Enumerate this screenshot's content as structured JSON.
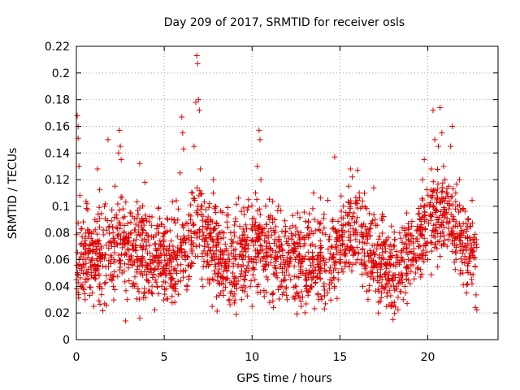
{
  "chart_data": {
    "type": "scatter",
    "title": "Day 209 of 2017, SRMTID for receiver osls",
    "xlabel": "GPS time / hours",
    "ylabel": "SRMTID / TECUs",
    "xlim": [
      0,
      24
    ],
    "ylim": [
      0,
      0.22
    ],
    "xticks": [
      0,
      5,
      10,
      15,
      20
    ],
    "xtick_labels": [
      "0",
      "5",
      "10",
      "15",
      "20"
    ],
    "yticks": [
      0,
      0.02,
      0.04,
      0.06,
      0.08,
      0.1,
      0.12,
      0.14,
      0.16,
      0.18,
      0.2,
      0.22
    ],
    "ytick_labels": [
      "0",
      "0.02",
      "0.04",
      "0.06",
      "0.08",
      "0.1",
      "0.12",
      "0.14",
      "0.16",
      "0.18",
      "0.2",
      "0.22"
    ],
    "grid": true,
    "marker": "+",
    "marker_color": "#e00000",
    "series": [
      {
        "name": "SRMTID",
        "points": [
          [
            0.05,
            0.168
          ],
          [
            0.1,
            0.16
          ],
          [
            0.1,
            0.151
          ],
          [
            0.15,
            0.13
          ],
          [
            0.2,
            0.108
          ],
          [
            0.25,
            0.062
          ],
          [
            0.3,
            0.055
          ],
          [
            0.4,
            0.07
          ],
          [
            0.5,
            0.03
          ],
          [
            0.6,
            0.045
          ],
          [
            0.7,
            0.08
          ],
          [
            0.8,
            0.058
          ],
          [
            0.9,
            0.035
          ],
          [
            1.0,
            0.025
          ],
          [
            1.1,
            0.065
          ],
          [
            1.2,
            0.128
          ],
          [
            1.3,
            0.04
          ],
          [
            1.4,
            0.07
          ],
          [
            1.5,
            0.055
          ],
          [
            1.6,
            0.1
          ],
          [
            1.7,
            0.048
          ],
          [
            1.8,
            0.15
          ],
          [
            1.9,
            0.085
          ],
          [
            2.0,
            0.062
          ],
          [
            2.1,
            0.04
          ],
          [
            2.2,
            0.115
          ],
          [
            2.3,
            0.072
          ],
          [
            2.4,
            0.14
          ],
          [
            2.45,
            0.157
          ],
          [
            2.5,
            0.145
          ],
          [
            2.55,
            0.135
          ],
          [
            2.6,
            0.05
          ],
          [
            2.7,
            0.08
          ],
          [
            2.8,
            0.014
          ],
          [
            2.9,
            0.03
          ],
          [
            3.0,
            0.06
          ],
          [
            3.1,
            0.095
          ],
          [
            3.2,
            0.068
          ],
          [
            3.3,
            0.04
          ],
          [
            3.4,
            0.075
          ],
          [
            3.5,
            0.055
          ],
          [
            3.6,
            0.132
          ],
          [
            3.7,
            0.088
          ],
          [
            3.8,
            0.07
          ],
          [
            3.9,
            0.118
          ],
          [
            4.0,
            0.045
          ],
          [
            4.1,
            0.078
          ],
          [
            4.2,
            0.06
          ],
          [
            4.3,
            0.092
          ],
          [
            4.4,
            0.052
          ],
          [
            4.5,
            0.072
          ],
          [
            4.6,
            0.04
          ],
          [
            4.7,
            0.085
          ],
          [
            4.8,
            0.065
          ],
          [
            4.9,
            0.05
          ],
          [
            5.0,
            0.07
          ],
          [
            5.1,
            0.038
          ],
          [
            5.2,
            0.09
          ],
          [
            5.3,
            0.058
          ],
          [
            5.4,
            0.045
          ],
          [
            5.5,
            0.07
          ],
          [
            5.6,
            0.028
          ],
          [
            5.7,
            0.06
          ],
          [
            5.8,
            0.098
          ],
          [
            5.9,
            0.125
          ],
          [
            6.0,
            0.167
          ],
          [
            6.05,
            0.155
          ],
          [
            6.1,
            0.143
          ],
          [
            6.2,
            0.06
          ],
          [
            6.3,
            0.04
          ],
          [
            6.4,
            0.075
          ],
          [
            6.5,
            0.09
          ],
          [
            6.6,
            0.11
          ],
          [
            6.7,
            0.145
          ],
          [
            6.8,
            0.178
          ],
          [
            6.85,
            0.213
          ],
          [
            6.9,
            0.207
          ],
          [
            6.95,
            0.18
          ],
          [
            7.0,
            0.172
          ],
          [
            7.05,
            0.128
          ],
          [
            7.1,
            0.1
          ],
          [
            7.2,
            0.085
          ],
          [
            7.3,
            0.07
          ],
          [
            7.4,
            0.055
          ],
          [
            7.5,
            0.092
          ],
          [
            7.6,
            0.045
          ],
          [
            7.7,
            0.062
          ],
          [
            7.8,
            0.12
          ],
          [
            7.9,
            0.1
          ],
          [
            8.0,
            0.075
          ],
          [
            8.1,
            0.05
          ],
          [
            8.2,
            0.035
          ],
          [
            8.3,
            0.065
          ],
          [
            8.4,
            0.08
          ],
          [
            8.5,
            0.045
          ],
          [
            8.6,
            0.06
          ],
          [
            8.7,
            0.03
          ],
          [
            8.8,
            0.07
          ],
          [
            8.9,
            0.05
          ],
          [
            9.0,
            0.04
          ],
          [
            9.1,
            0.019
          ],
          [
            9.2,
            0.055
          ],
          [
            9.3,
            0.085
          ],
          [
            9.4,
            0.03
          ],
          [
            9.5,
            0.062
          ],
          [
            9.6,
            0.048
          ],
          [
            9.7,
            0.072
          ],
          [
            9.8,
            0.105
          ],
          [
            9.9,
            0.04
          ],
          [
            10.0,
            0.025
          ],
          [
            10.1,
            0.06
          ],
          [
            10.2,
            0.11
          ],
          [
            10.3,
            0.13
          ],
          [
            10.4,
            0.157
          ],
          [
            10.45,
            0.15
          ],
          [
            10.5,
            0.12
          ],
          [
            10.6,
            0.08
          ],
          [
            10.7,
            0.055
          ],
          [
            10.8,
            0.07
          ],
          [
            10.9,
            0.045
          ],
          [
            11.0,
            0.09
          ],
          [
            11.1,
            0.062
          ],
          [
            11.2,
            0.035
          ],
          [
            11.3,
            0.075
          ],
          [
            11.4,
            0.05
          ],
          [
            11.5,
            0.1
          ],
          [
            11.6,
            0.068
          ],
          [
            11.7,
            0.04
          ],
          [
            11.8,
            0.058
          ],
          [
            11.9,
            0.085
          ],
          [
            12.0,
            0.03
          ],
          [
            12.1,
            0.065
          ],
          [
            12.2,
            0.045
          ],
          [
            12.3,
            0.078
          ],
          [
            12.4,
            0.055
          ],
          [
            12.5,
            0.04
          ],
          [
            12.6,
            0.095
          ],
          [
            12.7,
            0.06
          ],
          [
            12.8,
            0.025
          ],
          [
            12.9,
            0.05
          ],
          [
            13.0,
            0.072
          ],
          [
            13.1,
            0.038
          ],
          [
            13.2,
            0.088
          ],
          [
            13.3,
            0.06
          ],
          [
            13.4,
            0.045
          ],
          [
            13.5,
            0.11
          ],
          [
            13.6,
            0.07
          ],
          [
            13.7,
            0.048
          ],
          [
            13.8,
            0.03
          ],
          [
            13.9,
            0.062
          ],
          [
            14.0,
            0.08
          ],
          [
            14.1,
            0.042
          ],
          [
            14.2,
            0.058
          ],
          [
            14.3,
            0.035
          ],
          [
            14.4,
            0.075
          ],
          [
            14.5,
            0.05
          ],
          [
            14.6,
            0.09
          ],
          [
            14.7,
            0.137
          ],
          [
            14.8,
            0.068
          ],
          [
            14.9,
            0.045
          ],
          [
            15.0,
            0.06
          ],
          [
            15.1,
            0.082
          ],
          [
            15.2,
            0.1
          ],
          [
            15.3,
            0.055
          ],
          [
            15.4,
            0.07
          ],
          [
            15.5,
            0.115
          ],
          [
            15.6,
            0.128
          ],
          [
            15.7,
            0.122
          ],
          [
            15.8,
            0.095
          ],
          [
            15.9,
            0.075
          ],
          [
            16.0,
            0.06
          ],
          [
            16.1,
            0.11
          ],
          [
            16.2,
            0.085
          ],
          [
            16.3,
            0.04
          ],
          [
            16.4,
            0.065
          ],
          [
            16.5,
            0.05
          ],
          [
            16.6,
            0.03
          ],
          [
            16.7,
            0.078
          ],
          [
            16.8,
            0.058
          ],
          [
            16.9,
            0.045
          ],
          [
            17.0,
            0.09
          ],
          [
            17.1,
            0.068
          ],
          [
            17.2,
            0.028
          ],
          [
            17.3,
            0.055
          ],
          [
            17.4,
            0.04
          ],
          [
            17.5,
            0.072
          ],
          [
            17.6,
            0.05
          ],
          [
            17.7,
            0.035
          ],
          [
            17.8,
            0.06
          ],
          [
            17.9,
            0.025
          ],
          [
            18.0,
            0.045
          ],
          [
            18.1,
            0.075
          ],
          [
            18.2,
            0.038
          ],
          [
            18.3,
            0.058
          ],
          [
            18.4,
            0.08
          ],
          [
            18.5,
            0.05
          ],
          [
            18.6,
            0.068
          ],
          [
            18.7,
            0.04
          ],
          [
            18.8,
            0.095
          ],
          [
            18.9,
            0.06
          ],
          [
            19.0,
            0.042
          ],
          [
            19.1,
            0.078
          ],
          [
            19.2,
            0.065
          ],
          [
            19.3,
            0.05
          ],
          [
            19.4,
            0.085
          ],
          [
            19.5,
            0.07
          ],
          [
            19.6,
            0.1
          ],
          [
            19.7,
            0.12
          ],
          [
            19.8,
            0.135
          ],
          [
            19.9,
            0.09
          ],
          [
            20.0,
            0.06
          ],
          [
            20.1,
            0.1
          ],
          [
            20.2,
            0.128
          ],
          [
            20.3,
            0.172
          ],
          [
            20.4,
            0.15
          ],
          [
            20.5,
            0.11
          ],
          [
            20.6,
            0.145
          ],
          [
            20.7,
            0.174
          ],
          [
            20.8,
            0.155
          ],
          [
            20.9,
            0.13
          ],
          [
            21.0,
            0.095
          ],
          [
            21.1,
            0.07
          ],
          [
            21.2,
            0.115
          ],
          [
            21.3,
            0.145
          ],
          [
            21.4,
            0.16
          ],
          [
            21.5,
            0.09
          ],
          [
            21.6,
            0.065
          ],
          [
            21.7,
            0.1
          ],
          [
            21.8,
            0.12
          ],
          [
            21.9,
            0.08
          ],
          [
            22.0,
            0.05
          ],
          [
            22.1,
            0.07
          ],
          [
            22.2,
            0.035
          ],
          [
            22.3,
            0.09
          ],
          [
            22.4,
            0.062
          ],
          [
            22.5,
            0.045
          ],
          [
            22.6,
            0.075
          ],
          [
            22.7,
            0.055
          ]
        ]
      }
    ]
  }
}
